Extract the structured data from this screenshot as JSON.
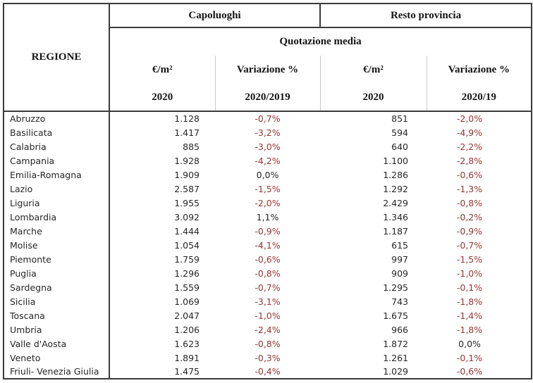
{
  "header": {
    "region_label": "REGIONE",
    "group_left": "Capoluoghi",
    "group_right": "Resto provincia",
    "subheader": "Quotazione media",
    "columns": [
      {
        "unit": "€/m²",
        "period": "2020"
      },
      {
        "unit": "Variazione %",
        "period": "2020/2019"
      },
      {
        "unit": "€/m²",
        "period": "2020"
      },
      {
        "unit": "Variazione %",
        "period": "2020/19"
      }
    ]
  },
  "colors": {
    "negative_value": "#963634",
    "text": "#262626",
    "border_dark": "#3b3b3b",
    "border_light": "#c9c9c9"
  },
  "chart_data": {
    "type": "table",
    "title": "",
    "column_headers": [
      "REGIONE",
      "Capoluoghi €/m² 2020",
      "Capoluoghi Variazione % 2020/2019",
      "Resto provincia €/m² 2020",
      "Resto provincia Variazione % 2020/19"
    ],
    "rows": [
      [
        "Abruzzo",
        "1.128",
        "-0,7%",
        "851",
        "-2,0%"
      ],
      [
        "Basilicata",
        "1.417",
        "-3,2%",
        "594",
        "-4,9%"
      ],
      [
        "Calabria",
        "885",
        "-3,0%",
        "640",
        "-2,2%"
      ],
      [
        "Campania",
        "1.928",
        "-4,2%",
        "1.100",
        "-2,8%"
      ],
      [
        "Emilia-Romagna",
        "1.909",
        "0,0%",
        "1.286",
        "-0,6%"
      ],
      [
        "Lazio",
        "2.587",
        "-1,5%",
        "1.292",
        "-1,3%"
      ],
      [
        "Liguria",
        "1.955",
        "-2,0%",
        "2.429",
        "-0,8%"
      ],
      [
        "Lombardia",
        "3.092",
        "1,1%",
        "1.346",
        "-0,2%"
      ],
      [
        "Marche",
        "1.444",
        "-0,9%",
        "1.187",
        "-0,9%"
      ],
      [
        "Molise",
        "1.054",
        "-4,1%",
        "615",
        "-0,7%"
      ],
      [
        "Piemonte",
        "1.759",
        "-0,6%",
        "997",
        "-1,5%"
      ],
      [
        "Puglia",
        "1.296",
        "-0,8%",
        "909",
        "-1,0%"
      ],
      [
        "Sardegna",
        "1.559",
        "-0,7%",
        "1.295",
        "-0,1%"
      ],
      [
        "Sicilia",
        "1.069",
        "-3,1%",
        "743",
        "-1,8%"
      ],
      [
        "Toscana",
        "2.047",
        "-1,0%",
        "1.675",
        "-1,4%"
      ],
      [
        "Umbria",
        "1.206",
        "-2,4%",
        "966",
        "-1,8%"
      ],
      [
        "Valle d'Aosta",
        "1.623",
        "-0,8%",
        "1.872",
        "0,0%"
      ],
      [
        "Veneto",
        "1.891",
        "-0,3%",
        "1.261",
        "-0,1%"
      ],
      [
        "Friuli- Venezia Giulia",
        "1.475",
        "-0,4%",
        "1.029",
        "-0,6%"
      ]
    ]
  }
}
